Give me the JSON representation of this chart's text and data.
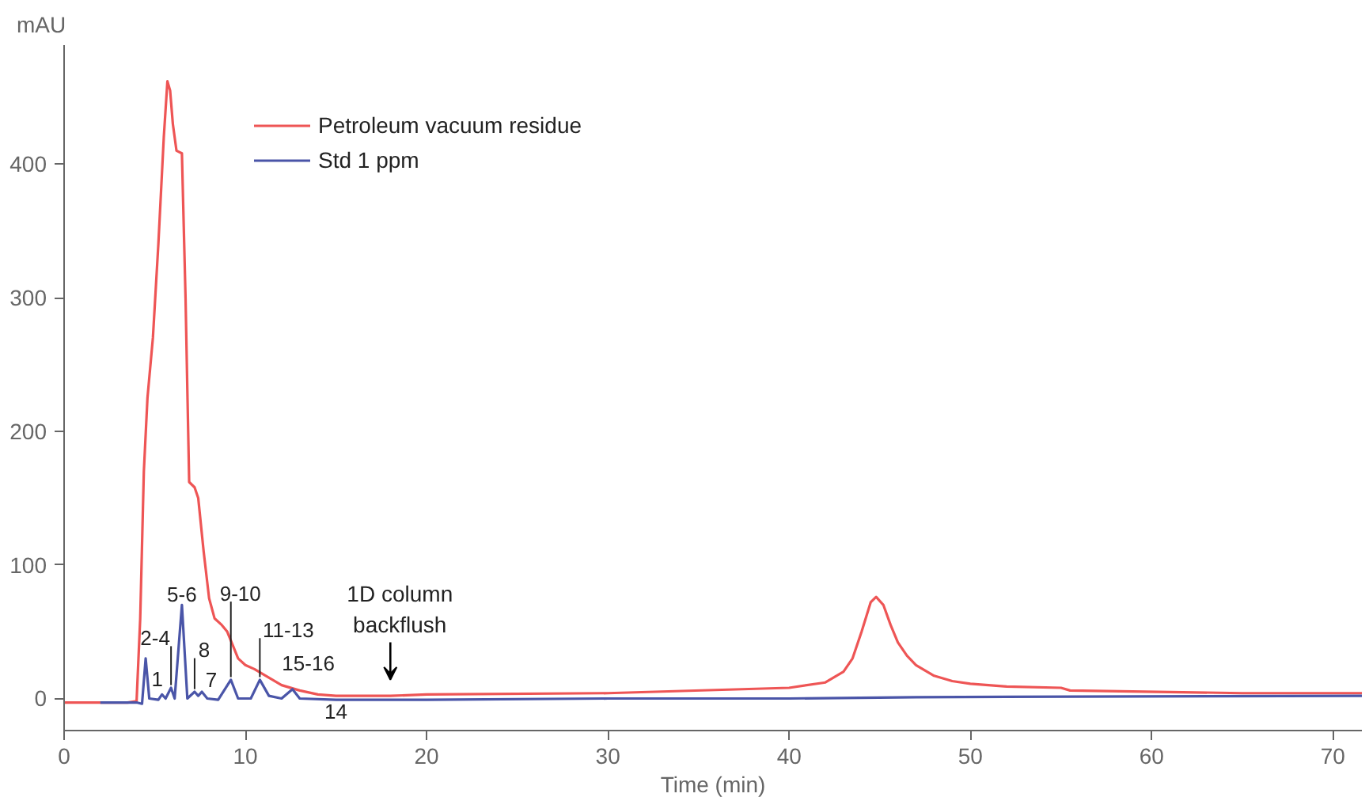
{
  "chart_data": {
    "type": "line",
    "xlabel": "Time (min)",
    "ylabel": "mAU",
    "xlim": [
      0,
      71.6
    ],
    "ylim": [
      -24,
      489
    ],
    "xticks": [
      0,
      10,
      20,
      30,
      40,
      50,
      60,
      70
    ],
    "yticks": [
      0,
      100,
      200,
      300,
      400
    ],
    "grid": false,
    "legend": "top left",
    "marker": "none",
    "line_style": "solid",
    "series": [
      {
        "name": "Petroleum vacuum residue",
        "color": "#ee5555",
        "x": [
          0,
          3.5,
          4.0,
          4.2,
          4.4,
          4.6,
          4.9,
          5.2,
          5.5,
          5.7,
          5.85,
          6.0,
          6.2,
          6.5,
          6.7,
          6.9,
          7.2,
          7.4,
          7.7,
          8.0,
          8.3,
          8.7,
          9.0,
          9.3,
          9.6,
          10,
          10.5,
          11,
          11.5,
          12,
          13,
          14,
          15,
          18,
          20,
          30,
          40,
          42,
          43,
          43.5,
          44,
          44.5,
          44.8,
          45.2,
          45.6,
          46,
          46.5,
          47,
          48,
          49,
          50,
          52,
          55,
          55.5,
          65,
          71.6
        ],
        "values": [
          -3,
          -3,
          -2,
          60,
          170,
          225,
          270,
          340,
          420,
          462,
          455,
          430,
          410,
          408,
          300,
          162,
          158,
          150,
          110,
          75,
          60,
          55,
          50,
          40,
          30,
          25,
          22,
          18,
          14,
          10,
          6,
          3,
          2,
          2,
          3,
          4,
          8,
          12,
          20,
          30,
          50,
          72,
          76,
          70,
          55,
          42,
          32,
          25,
          17,
          13,
          11,
          9,
          8,
          6,
          4,
          4
        ]
      },
      {
        "name": "Std 1 ppm",
        "color": "#4a55a8",
        "x": [
          2,
          4.0,
          4.3,
          4.5,
          4.7,
          5.2,
          5.4,
          5.6,
          5.9,
          6.1,
          6.5,
          6.8,
          7.2,
          7.4,
          7.6,
          7.9,
          8.5,
          9.2,
          9.6,
          10.3,
          10.8,
          11.3,
          12,
          12.6,
          13,
          15,
          20,
          30,
          40,
          47,
          71.6
        ],
        "values": [
          -3,
          -3,
          -4,
          30,
          0,
          -1,
          3,
          0,
          8,
          0,
          70,
          0,
          5,
          2,
          5,
          0,
          -1,
          14,
          0,
          0,
          14,
          2,
          0,
          7,
          0,
          -1,
          -1,
          0,
          0,
          1,
          2
        ]
      }
    ],
    "annotations": [
      {
        "text": "1",
        "x": 5.4,
        "y": 3
      },
      {
        "text": "2-4",
        "x": 5.9,
        "y": 8
      },
      {
        "text": "5-6",
        "x": 6.5,
        "y": 70
      },
      {
        "text": "8",
        "x": 7.2,
        "y": 5
      },
      {
        "text": "7",
        "x": 7.6,
        "y": 5
      },
      {
        "text": "9-10",
        "x": 9.2,
        "y": 14
      },
      {
        "text": "11-13",
        "x": 10.8,
        "y": 14
      },
      {
        "text": "15-16",
        "x": 12.6,
        "y": 7
      },
      {
        "text": "14",
        "x": 15,
        "y": -1
      },
      {
        "text": "1D column\nbackflush",
        "x": 18,
        "y": 2
      }
    ]
  }
}
